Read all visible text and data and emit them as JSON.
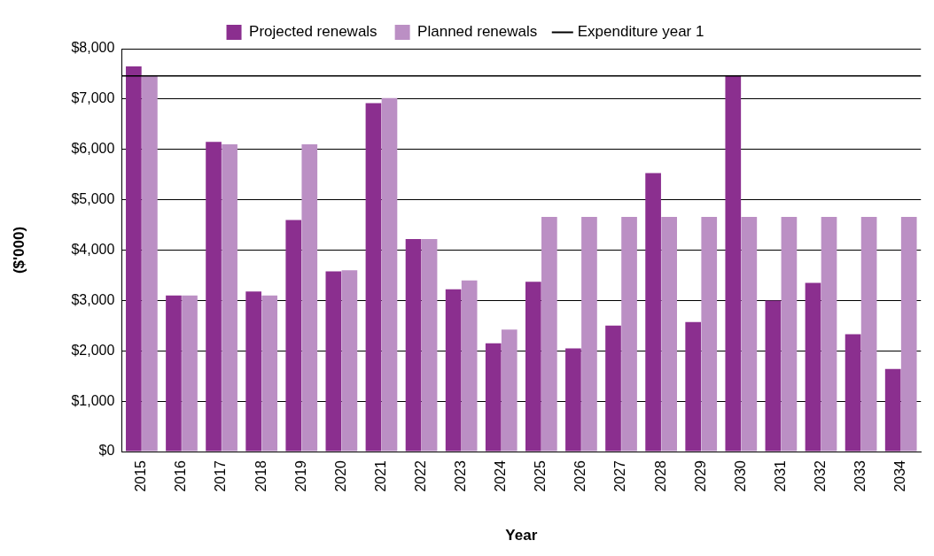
{
  "chart_data": {
    "type": "bar",
    "xlabel": "Year",
    "ylabel": "($'000)",
    "categories": [
      "2015",
      "2016",
      "2017",
      "2018",
      "2019",
      "2020",
      "2021",
      "2022",
      "2023",
      "2024",
      "2025",
      "2026",
      "2027",
      "2028",
      "2029",
      "2030",
      "2031",
      "2032",
      "2033",
      "2034"
    ],
    "series": [
      {
        "name": "Projected renewals",
        "color": "#8b2f8f",
        "values": [
          7650,
          3100,
          6150,
          3180,
          4600,
          3580,
          6920,
          4220,
          3220,
          2150,
          3370,
          2050,
          2500,
          5530,
          2570,
          7470,
          3000,
          3350,
          2330,
          1640
        ]
      },
      {
        "name": "Planned renewals",
        "color": "#bb8fc4",
        "values": [
          7470,
          3100,
          6100,
          3100,
          6100,
          3600,
          7020,
          4220,
          3400,
          2420,
          4660,
          4660,
          4660,
          4660,
          4660,
          4660,
          4660,
          4660,
          4660,
          4660
        ]
      }
    ],
    "ref_lines": [
      {
        "axis": "y",
        "value": 7460,
        "label": "Expenditure year 1",
        "color": "#000000"
      }
    ],
    "ylim": [
      0,
      8000
    ],
    "yticks": [
      {
        "value": 0,
        "label": "$0"
      },
      {
        "value": 1000,
        "label": "$1,000"
      },
      {
        "value": 2000,
        "label": "$2,000"
      },
      {
        "value": 3000,
        "label": "$3,000"
      },
      {
        "value": 4000,
        "label": "$4,000"
      },
      {
        "value": 5000,
        "label": "$5,000"
      },
      {
        "value": 6000,
        "label": "$6,000"
      },
      {
        "value": 7000,
        "label": "$7,000"
      },
      {
        "value": 8000,
        "label": "$8,000"
      }
    ],
    "grid": "y",
    "legend": "top"
  }
}
